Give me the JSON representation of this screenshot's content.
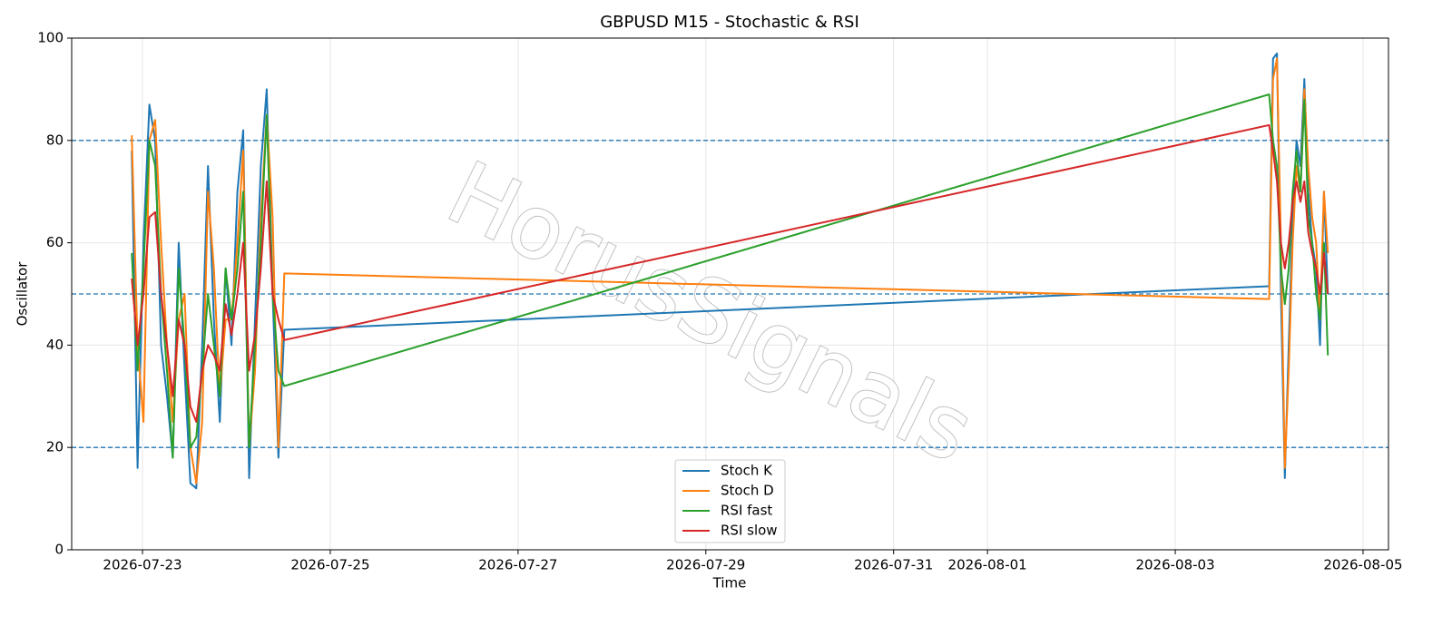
{
  "chart_data": {
    "type": "line",
    "title": "GBPUSD M15 - Stochastic & RSI",
    "xlabel": "Time",
    "ylabel": "Oscillator",
    "watermark": "HorusSignals",
    "x": [
      "2026-07-22T21:15",
      "2026-07-22T22:45",
      "2026-07-23T00:15",
      "2026-07-23T01:45",
      "2026-07-23T03:15",
      "2026-07-23T04:45",
      "2026-07-23T06:15",
      "2026-07-23T07:45",
      "2026-07-23T09:15",
      "2026-07-23T10:45",
      "2026-07-23T12:15",
      "2026-07-23T13:45",
      "2026-07-23T15:15",
      "2026-07-23T16:45",
      "2026-07-23T18:15",
      "2026-07-23T19:45",
      "2026-07-23T21:15",
      "2026-07-23T22:45",
      "2026-07-24T00:15",
      "2026-07-24T01:45",
      "2026-07-24T03:15",
      "2026-07-24T04:45",
      "2026-07-24T06:15",
      "2026-07-24T07:45",
      "2026-07-24T09:15",
      "2026-07-24T10:45",
      "2026-07-24T12:15",
      "2026-08-04T00:00",
      "2026-08-04T01:00",
      "2026-08-04T02:00",
      "2026-08-04T03:00",
      "2026-08-04T04:00",
      "2026-08-04T05:00",
      "2026-08-04T06:00",
      "2026-08-04T07:00",
      "2026-08-04T08:00",
      "2026-08-04T09:00",
      "2026-08-04T10:00",
      "2026-08-04T11:00",
      "2026-08-04T12:00",
      "2026-08-04T13:00",
      "2026-08-04T14:00",
      "2026-08-04T15:00"
    ],
    "series": [
      {
        "name": "Stoch K",
        "color": "#1f77b4",
        "values": [
          78,
          16,
          60,
          87,
          80,
          40,
          30,
          18,
          60,
          35,
          13,
          12,
          40,
          75,
          45,
          25,
          55,
          40,
          70,
          82,
          14,
          45,
          75,
          90,
          50,
          18,
          43,
          51.5,
          96,
          97,
          50,
          14,
          40,
          65,
          80,
          75,
          92,
          70,
          60,
          55,
          40,
          70,
          50
        ]
      },
      {
        "name": "Stoch D",
        "color": "#ff7f0e",
        "values": [
          81,
          40,
          25,
          80,
          84,
          60,
          40,
          25,
          45,
          50,
          20,
          13,
          25,
          70,
          55,
          30,
          45,
          45,
          60,
          78,
          20,
          35,
          65,
          85,
          65,
          20,
          54,
          49,
          92,
          96,
          60,
          16,
          35,
          60,
          75,
          70,
          90,
          75,
          65,
          60,
          45,
          70,
          58
        ]
      },
      {
        "name": "RSI fast",
        "color": "#2ca02c",
        "values": [
          58,
          35,
          55,
          80,
          75,
          50,
          35,
          18,
          55,
          40,
          20,
          22,
          35,
          50,
          40,
          30,
          55,
          45,
          55,
          70,
          20,
          40,
          60,
          85,
          50,
          35,
          32,
          89,
          80,
          75,
          55,
          48,
          55,
          70,
          78,
          70,
          88,
          65,
          60,
          50,
          45,
          60,
          38
        ]
      },
      {
        "name": "RSI slow",
        "color": "#d62728",
        "values": [
          53,
          40,
          50,
          65,
          66,
          50,
          40,
          30,
          45,
          40,
          28,
          25,
          35,
          40,
          38,
          35,
          48,
          42,
          50,
          60,
          35,
          42,
          55,
          72,
          50,
          45,
          41,
          83,
          78,
          72,
          60,
          55,
          60,
          68,
          72,
          68,
          72,
          62,
          58,
          55,
          50,
          58,
          50
        ]
      }
    ],
    "xlim": [
      "2026-07-22T05:54",
      "2026-08-05T06:30"
    ],
    "xticks": [
      "2026-07-23",
      "2026-07-25",
      "2026-07-27",
      "2026-07-29",
      "2026-07-31",
      "2026-08-01",
      "2026-08-03",
      "2026-08-05"
    ],
    "ylim": [
      0,
      100
    ],
    "yticks": [
      0,
      20,
      40,
      60,
      80,
      100
    ],
    "hlines": [
      80,
      50,
      20
    ],
    "hline_color": "#1f77b4",
    "grid": true,
    "legend": "lower center"
  }
}
